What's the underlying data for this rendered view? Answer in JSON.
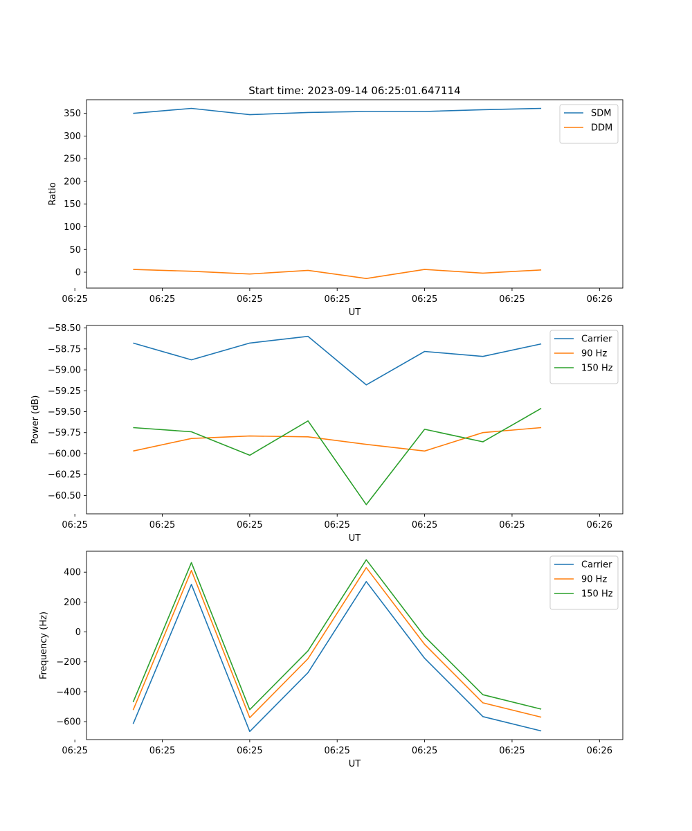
{
  "chart_data": [
    {
      "type": "line",
      "title": "Start time: 2023-09-14 06:25:01.647114",
      "xlabel": "UT",
      "ylabel": "Ratio",
      "xlim": [
        0.2,
        9.4
      ],
      "ylim": [
        -35,
        380
      ],
      "x": [
        1,
        2,
        3,
        4,
        5,
        6,
        7,
        8
      ],
      "xticks": [
        0,
        1.5,
        3,
        4.5,
        6,
        7.5,
        9
      ],
      "xtick_labels": [
        "06:25",
        "06:25",
        "06:25",
        "06:25",
        "06:25",
        "06:25",
        "06:26"
      ],
      "yticks": [
        0,
        50,
        100,
        150,
        200,
        250,
        300,
        350
      ],
      "ytick_labels": [
        "0",
        "50",
        "100",
        "150",
        "200",
        "250",
        "300",
        "350"
      ],
      "legend": "top-right",
      "series": [
        {
          "name": "SDM",
          "color": "#1f77b4",
          "values": [
            350,
            361,
            347,
            352,
            354,
            354,
            358,
            361
          ]
        },
        {
          "name": "DDM",
          "color": "#ff7f0e",
          "values": [
            6,
            2,
            -4,
            4,
            -14,
            6,
            -2,
            5
          ]
        }
      ]
    },
    {
      "type": "line",
      "title": "",
      "xlabel": "UT",
      "ylabel": "Power (dB)",
      "xlim": [
        0.2,
        9.4
      ],
      "ylim": [
        -60.72,
        -58.47
      ],
      "x": [
        1,
        2,
        3,
        4,
        5,
        6,
        7,
        8
      ],
      "xticks": [
        0,
        1.5,
        3,
        4.5,
        6,
        7.5,
        9
      ],
      "xtick_labels": [
        "06:25",
        "06:25",
        "06:25",
        "06:25",
        "06:25",
        "06:25",
        "06:26"
      ],
      "yticks": [
        -58.5,
        -58.75,
        -59.0,
        -59.25,
        -59.5,
        -59.75,
        -60.0,
        -60.25,
        -60.5
      ],
      "ytick_labels": [
        "−58.50",
        "−58.75",
        "−59.00",
        "−59.25",
        "−59.50",
        "−59.75",
        "−60.00",
        "−60.25",
        "−60.50"
      ],
      "legend": "top-right",
      "series": [
        {
          "name": "Carrier",
          "color": "#1f77b4",
          "values": [
            -58.68,
            -58.88,
            -58.68,
            -58.6,
            -59.18,
            -58.78,
            -58.84,
            -58.69
          ]
        },
        {
          "name": "90 Hz",
          "color": "#ff7f0e",
          "values": [
            -59.97,
            -59.82,
            -59.79,
            -59.8,
            -59.89,
            -59.97,
            -59.75,
            -59.69
          ]
        },
        {
          "name": "150 Hz",
          "color": "#2ca02c",
          "values": [
            -59.69,
            -59.74,
            -60.02,
            -59.61,
            -60.61,
            -59.71,
            -59.86,
            -59.46
          ]
        }
      ]
    },
    {
      "type": "line",
      "title": "",
      "xlabel": "UT",
      "ylabel": "Frequency (Hz)",
      "xlim": [
        0.2,
        9.4
      ],
      "ylim": [
        -720,
        540
      ],
      "x": [
        1,
        2,
        3,
        4,
        5,
        6,
        7,
        8
      ],
      "xticks": [
        0,
        1.5,
        3,
        4.5,
        6,
        7.5,
        9
      ],
      "xtick_labels": [
        "06:25",
        "06:25",
        "06:25",
        "06:25",
        "06:25",
        "06:25",
        "06:26"
      ],
      "yticks": [
        -600,
        -400,
        -200,
        0,
        200,
        400
      ],
      "ytick_labels": [
        "−600",
        "−400",
        "−200",
        "0",
        "200",
        "400"
      ],
      "legend": "top-right",
      "series": [
        {
          "name": "Carrier",
          "color": "#1f77b4",
          "values": [
            -615,
            318,
            -666,
            -272,
            337,
            -176,
            -566,
            -662
          ]
        },
        {
          "name": "90 Hz",
          "color": "#ff7f0e",
          "values": [
            -522,
            411,
            -573,
            -179,
            430,
            -83,
            -474,
            -570
          ]
        },
        {
          "name": "150 Hz",
          "color": "#2ca02c",
          "values": [
            -469,
            464,
            -520,
            -126,
            483,
            -30,
            -420,
            -516
          ]
        }
      ]
    }
  ]
}
